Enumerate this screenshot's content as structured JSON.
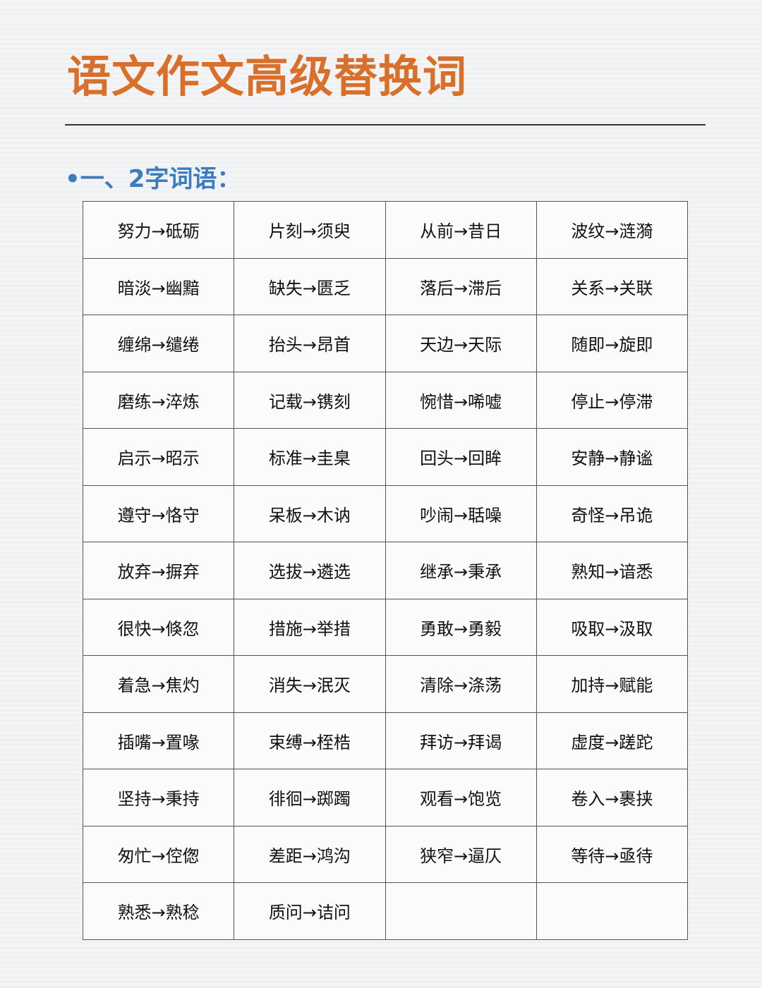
{
  "title": "语文作文高级替换词",
  "section": {
    "bullet": "•",
    "heading": "一、2字词语："
  },
  "colors": {
    "title": "#d8702b",
    "heading": "#3b7cc0"
  },
  "rows": [
    [
      "努力→砥砺",
      "片刻→须臾",
      "从前→昔日",
      "波纹→涟漪"
    ],
    [
      "暗淡→幽黯",
      "缺失→匮乏",
      "落后→滞后",
      "关系→关联"
    ],
    [
      "缠绵→缱绻",
      "抬头→昂首",
      "天边→天际",
      "随即→旋即"
    ],
    [
      "磨练→淬炼",
      "记载→镌刻",
      "惋惜→唏嘘",
      "停止→停滞"
    ],
    [
      "启示→昭示",
      "标准→圭臬",
      "回头→回眸",
      "安静→静谧"
    ],
    [
      "遵守→恪守",
      "呆板→木讷",
      "吵闹→聒噪",
      "奇怪→吊诡"
    ],
    [
      "放弃→摒弃",
      "选拔→遴选",
      "继承→秉承",
      "熟知→谙悉"
    ],
    [
      "很快→倏忽",
      "措施→举措",
      "勇敢→勇毅",
      "吸取→汲取"
    ],
    [
      "着急→焦灼",
      "消失→泯灭",
      "清除→涤荡",
      "加持→赋能"
    ],
    [
      "插嘴→置喙",
      "束缚→桎梏",
      "拜访→拜谒",
      "虚度→蹉跎"
    ],
    [
      "坚持→秉持",
      "徘徊→踯躅",
      "观看→饱览",
      "卷入→裹挟"
    ],
    [
      "匆忙→倥偬",
      "差距→鸿沟",
      "狭窄→逼仄",
      "等待→亟待"
    ],
    [
      "熟悉→熟稔",
      "质问→诘问",
      "",
      ""
    ]
  ]
}
